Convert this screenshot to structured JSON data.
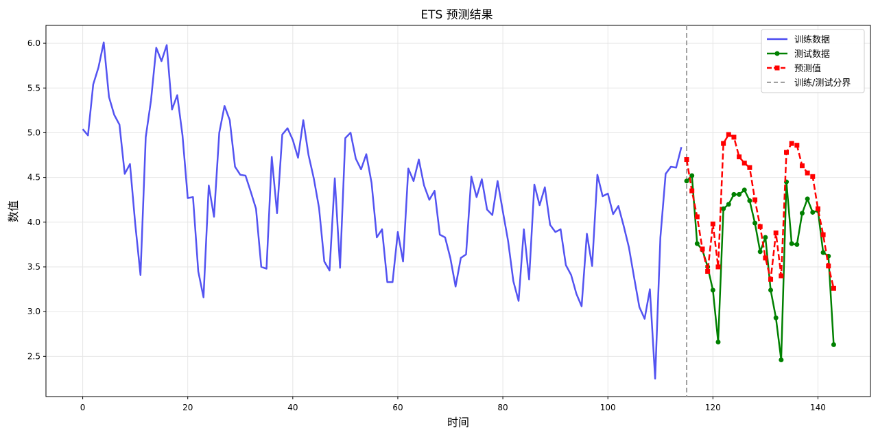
{
  "chart_data": {
    "type": "line",
    "title": "ETS 预测结果",
    "xlabel": "时间",
    "ylabel": "数值",
    "xlim": [
      -7,
      150
    ],
    "ylim": [
      2.05,
      6.2
    ],
    "xticks": [
      0,
      20,
      40,
      60,
      80,
      100,
      120,
      140
    ],
    "yticks": [
      2.5,
      3.0,
      3.5,
      4.0,
      4.5,
      5.0,
      5.5,
      6.0
    ],
    "ytick_labels": [
      "2.5",
      "3.0",
      "3.5",
      "4.0",
      "4.5",
      "5.0",
      "5.5",
      "6.0"
    ],
    "grid": true,
    "legend_position": "top-right",
    "split_line": {
      "x": 115,
      "label": "训练/测试分界",
      "color": "#a0a0a0"
    },
    "series": [
      {
        "name": "训练数据",
        "color": "#4a4af0",
        "style": "solid",
        "marker": "none",
        "x": [
          0,
          1,
          2,
          3,
          4,
          5,
          6,
          7,
          8,
          9,
          10,
          11,
          12,
          13,
          14,
          15,
          16,
          17,
          18,
          19,
          20,
          21,
          22,
          23,
          24,
          25,
          26,
          27,
          28,
          29,
          30,
          31,
          32,
          33,
          34,
          35,
          36,
          37,
          38,
          39,
          40,
          41,
          42,
          43,
          44,
          45,
          46,
          47,
          48,
          49,
          50,
          51,
          52,
          53,
          54,
          55,
          56,
          57,
          58,
          59,
          60,
          61,
          62,
          63,
          64,
          65,
          66,
          67,
          68,
          69,
          70,
          71,
          72,
          73,
          74,
          75,
          76,
          77,
          78,
          79,
          80,
          81,
          82,
          83,
          84,
          85,
          86,
          87,
          88,
          89,
          90,
          91,
          92,
          93,
          94,
          95,
          96,
          97,
          98,
          99,
          100,
          101,
          102,
          103,
          104,
          105,
          106,
          107,
          108,
          109,
          110,
          111,
          112,
          113,
          114
        ],
        "values": [
          5.04,
          4.97,
          5.54,
          5.73,
          6.01,
          5.4,
          5.2,
          5.09,
          4.54,
          4.65,
          3.98,
          3.41,
          4.95,
          5.36,
          5.95,
          5.8,
          5.98,
          5.26,
          5.42,
          4.97,
          4.27,
          4.28,
          3.45,
          3.16,
          4.41,
          4.06,
          5.0,
          5.3,
          5.14,
          4.62,
          4.53,
          4.52,
          4.34,
          4.15,
          3.5,
          3.48,
          4.73,
          4.1,
          4.98,
          5.05,
          4.92,
          4.72,
          5.14,
          4.75,
          4.49,
          4.16,
          3.56,
          3.46,
          4.49,
          3.49,
          4.94,
          5.0,
          4.71,
          4.59,
          4.76,
          4.44,
          3.83,
          3.92,
          3.33,
          3.33,
          3.89,
          3.56,
          4.6,
          4.46,
          4.7,
          4.41,
          4.25,
          4.35,
          3.86,
          3.83,
          3.6,
          3.28,
          3.6,
          3.64,
          4.51,
          4.28,
          4.48,
          4.14,
          4.08,
          4.46,
          4.12,
          3.79,
          3.34,
          3.12,
          3.92,
          3.36,
          4.42,
          4.19,
          4.39,
          3.97,
          3.89,
          3.92,
          3.52,
          3.41,
          3.2,
          3.06,
          3.87,
          3.51,
          4.53,
          4.29,
          4.32,
          4.09,
          4.18,
          3.96,
          3.72,
          3.38,
          3.05,
          2.92,
          3.25,
          2.25,
          3.83,
          4.54,
          4.62,
          4.61,
          4.84
        ]
      },
      {
        "name": "测试数据",
        "color": "#008000",
        "style": "solid",
        "marker": "circle",
        "x": [
          115,
          116,
          117,
          118,
          119,
          120,
          121,
          122,
          123,
          124,
          125,
          126,
          127,
          128,
          129,
          130,
          131,
          132,
          133,
          134,
          135,
          136,
          137,
          138,
          139,
          140,
          141,
          142,
          143
        ],
        "values": [
          4.46,
          4.52,
          3.76,
          3.69,
          3.5,
          3.24,
          2.66,
          4.15,
          4.2,
          4.31,
          4.31,
          4.36,
          4.24,
          3.99,
          3.67,
          3.83,
          3.24,
          2.93,
          2.46,
          4.45,
          3.76,
          3.75,
          4.1,
          4.26,
          4.11,
          4.13,
          3.66,
          3.62,
          2.63
        ]
      },
      {
        "name": "预测值",
        "color": "#ff0000",
        "style": "dashed",
        "marker": "square",
        "x": [
          115,
          116,
          117,
          118,
          119,
          120,
          121,
          122,
          123,
          124,
          125,
          126,
          127,
          128,
          129,
          130,
          131,
          132,
          133,
          134,
          135,
          136,
          137,
          138,
          139,
          140,
          141,
          142,
          143
        ],
        "values": [
          4.7,
          4.35,
          4.06,
          3.7,
          3.45,
          3.98,
          3.5,
          4.88,
          4.98,
          4.95,
          4.73,
          4.66,
          4.61,
          4.25,
          3.95,
          3.6,
          3.36,
          3.88,
          3.4,
          4.78,
          4.88,
          4.86,
          4.63,
          4.55,
          4.51,
          4.15,
          3.86,
          3.51,
          3.26
        ]
      }
    ]
  }
}
